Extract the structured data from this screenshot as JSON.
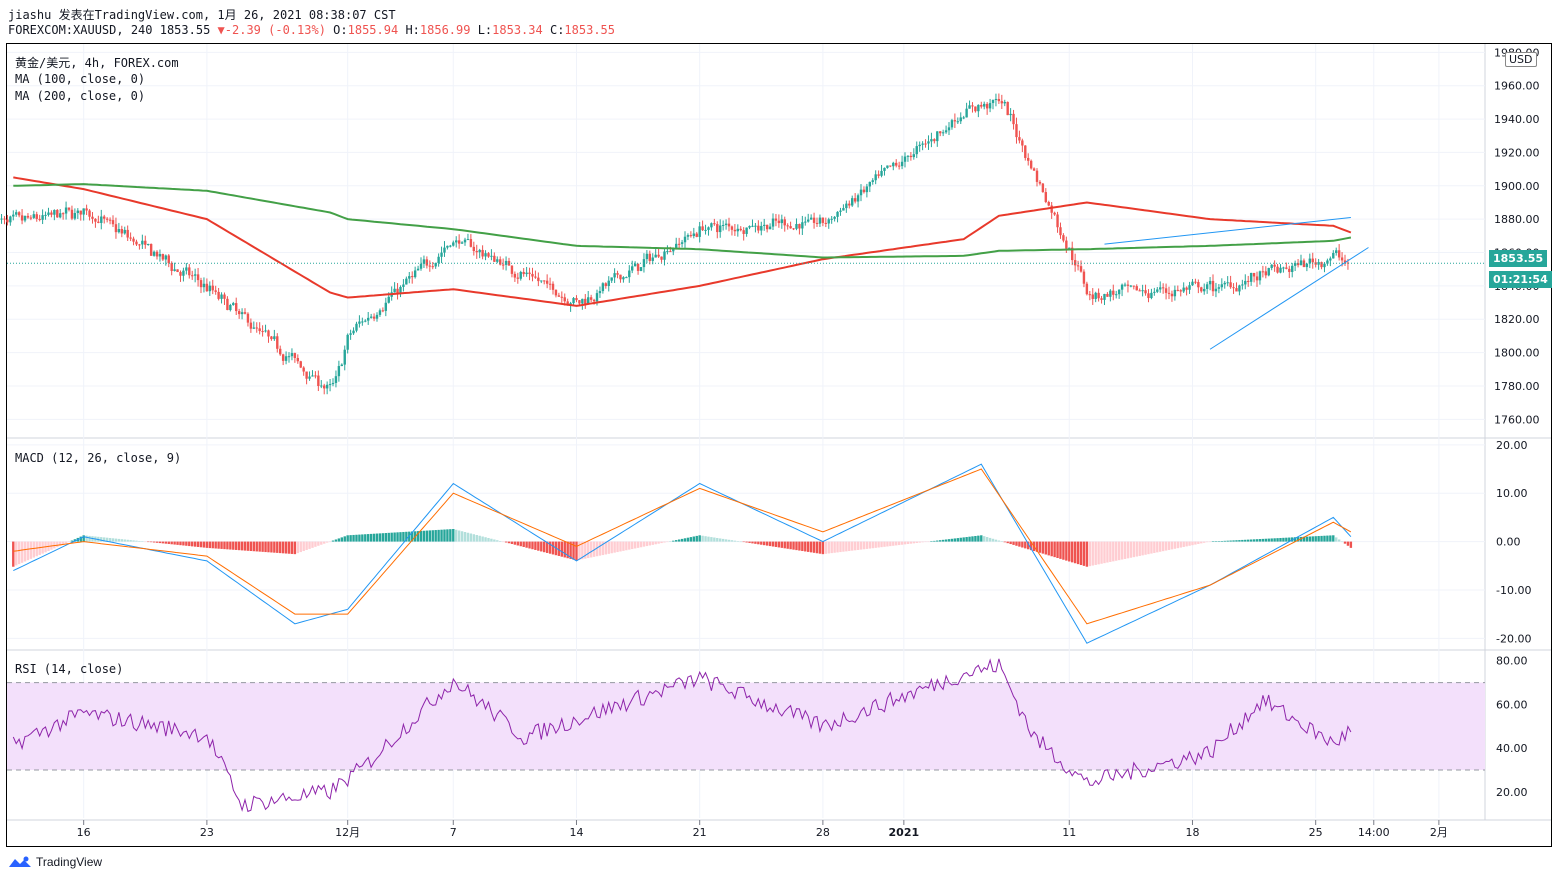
{
  "header": {
    "line1": "jiashu 发表在TradingView.com, 1月 26, 2021 08:38:07 CST",
    "symbol": "FOREXCOM:XAUUSD, 240",
    "last": "1853.55",
    "change_arrow": "▼",
    "change": "-2.39 (-0.13%)",
    "o_label": "O:",
    "o_value": "1855.94",
    "h_label": "H:",
    "h_value": "1856.99",
    "l_label": "L:",
    "l_value": "1853.34",
    "c_label": "C:",
    "c_value": "1853.55"
  },
  "legends": {
    "main_title": "黄金/美元, 4h, FOREX.com",
    "ma100": "MA (100, close, 0)",
    "ma200": "MA (200, close, 0)",
    "macd": "MACD (12, 26, close, 9)",
    "rsi": "RSI (14, close)"
  },
  "price_axis": {
    "currency": "USD",
    "ticks": [
      "1980.00",
      "1960.00",
      "1940.00",
      "1920.00",
      "1900.00",
      "1880.00",
      "1860.00",
      "1840.00",
      "1820.00",
      "1800.00",
      "1780.00",
      "1760.00"
    ],
    "last_price_tag": "1853.55",
    "countdown_tag": "01:21:54"
  },
  "macd_axis": {
    "ticks": [
      "20.00",
      "10.00",
      "0.00",
      "-10.00",
      "-20.00"
    ]
  },
  "rsi_axis": {
    "ticks": [
      "80.00",
      "60.00",
      "40.00",
      "20.00"
    ]
  },
  "time_axis": {
    "ticks": [
      "16",
      "23",
      "12月",
      "7",
      "14",
      "21",
      "28",
      "2021",
      "11",
      "18",
      "25",
      "14:00",
      "2月"
    ]
  },
  "branding": {
    "logo_text": "TradingView"
  },
  "colors": {
    "up": "#26a69a",
    "down": "#ef5350",
    "ma100": "#e8392b",
    "ma200": "#43a047",
    "trendline": "#2196f3",
    "macd_line": "#2196f3",
    "signal_line": "#ff6d00",
    "rsi_line": "#8e24aa",
    "rsi_band": "#f3e0fb",
    "tag_up": "#26a69a"
  },
  "chart_data": [
    {
      "type": "candlestick",
      "title": "黄金/美元, 4h, FOREX.com",
      "ylim": [
        1750,
        1985
      ],
      "ylabel": "USD",
      "x": [
        "11-12",
        "11-16",
        "11-23",
        "11-30",
        "12-01",
        "12-07",
        "12-14",
        "12-21",
        "12-28",
        "2021-01-04",
        "01-06",
        "01-11",
        "01-18",
        "01-25",
        "01-26"
      ],
      "close": [
        1878,
        1885,
        1838,
        1776,
        1812,
        1868,
        1830,
        1875,
        1878,
        1945,
        1952,
        1835,
        1838,
        1858,
        1853.55
      ],
      "last_close": 1853.55,
      "series": [
        {
          "name": "MA (100, close, 0)",
          "values": [
            1905,
            1898,
            1880,
            1836,
            1833,
            1838,
            1828,
            1840,
            1856,
            1868,
            1882,
            1890,
            1880,
            1876,
            1872
          ]
        },
        {
          "name": "MA (200, close, 0)",
          "values": [
            1900,
            1901,
            1897,
            1884,
            1880,
            1874,
            1864,
            1862,
            1857,
            1858,
            1861,
            1862,
            1864,
            1867,
            1869
          ]
        }
      ],
      "trendlines": [
        {
          "from": [
            "01-12",
            1865
          ],
          "to": [
            "01-26",
            1881
          ]
        },
        {
          "from": [
            "01-18",
            1802
          ],
          "to": [
            "01-27",
            1863
          ]
        }
      ]
    },
    {
      "type": "line",
      "title": "MACD (12, 26, close, 9)",
      "ylim": [
        -22,
        21
      ],
      "x": [
        "11-12",
        "11-16",
        "11-23",
        "11-28",
        "12-01",
        "12-07",
        "12-14",
        "12-21",
        "12-28",
        "2021-01-05",
        "01-11",
        "01-18",
        "01-25",
        "01-26"
      ],
      "series": [
        {
          "name": "MACD",
          "values": [
            -6,
            1,
            -4,
            -17,
            -14,
            12,
            -4,
            12,
            0,
            16,
            -21,
            -9,
            5,
            1
          ]
        },
        {
          "name": "Signal",
          "values": [
            -2,
            0,
            -3,
            -15,
            -15,
            10,
            -1,
            11,
            2,
            15,
            -17,
            -9,
            4,
            2
          ]
        }
      ]
    },
    {
      "type": "line",
      "title": "RSI (14, close)",
      "ylim": [
        8,
        84
      ],
      "bands": [
        30,
        70
      ],
      "x": [
        "11-12",
        "11-16",
        "11-23",
        "11-25",
        "11-30",
        "12-02",
        "12-07",
        "12-11",
        "12-18",
        "12-21",
        "12-28",
        "2021-01-04",
        "01-06",
        "01-08",
        "01-11",
        "01-18",
        "01-21",
        "01-25",
        "01-26"
      ],
      "values": [
        42,
        56,
        46,
        14,
        20,
        32,
        71,
        45,
        64,
        72,
        50,
        74,
        78,
        45,
        24,
        38,
        62,
        42,
        48
      ]
    }
  ]
}
